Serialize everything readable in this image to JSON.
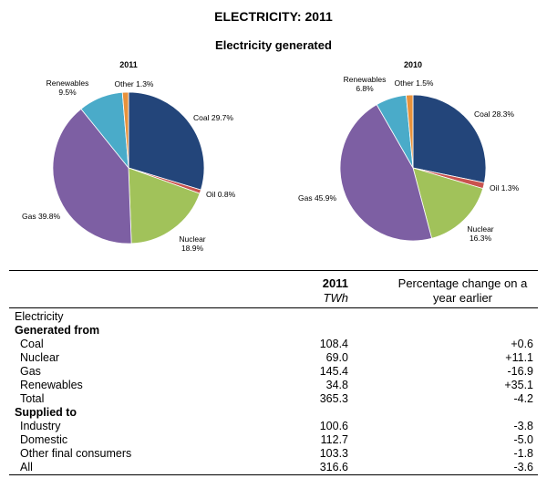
{
  "header": {
    "title": "ELECTRICITY: 2011",
    "subtitle": "Electricity generated"
  },
  "chart_data": [
    {
      "type": "pie",
      "title": "2011",
      "categories": [
        "Coal",
        "Oil",
        "Nuclear",
        "Gas",
        "Renewables",
        "Other"
      ],
      "values": [
        29.7,
        0.8,
        18.9,
        39.8,
        9.5,
        1.3
      ],
      "labels": [
        "Coal 29.7%",
        "Oil 0.8%",
        "Nuclear\n18.9%",
        "Gas 39.8%",
        "Renewables\n9.5%",
        "Other 1.3%"
      ],
      "colors": [
        "#23457a",
        "#c9534f",
        "#a1c25a",
        "#7d5fa3",
        "#4aabc9",
        "#e8923c"
      ]
    },
    {
      "type": "pie",
      "title": "2010",
      "categories": [
        "Coal",
        "Oil",
        "Nuclear",
        "Gas",
        "Renewables",
        "Other"
      ],
      "values": [
        28.3,
        1.3,
        16.3,
        45.9,
        6.8,
        1.5
      ],
      "labels": [
        "Coal 28.3%",
        "Oil 1.3%",
        "Nuclear\n16.3%",
        "Gas 45.9%",
        "Renewables\n6.8%",
        "Other 1.5%"
      ],
      "colors": [
        "#23457a",
        "#c9534f",
        "#a1c25a",
        "#7d5fa3",
        "#4aabc9",
        "#e8923c"
      ]
    },
    {
      "type": "table",
      "columns": [
        "",
        "2011",
        "Percentage change on a year earlier"
      ],
      "units": "TWh",
      "rows": [
        {
          "label": "Electricity",
          "value": "",
          "change": "",
          "style": "plain"
        },
        {
          "label": "Generated from",
          "value": "",
          "change": "",
          "style": "bold"
        },
        {
          "label": "Coal",
          "value": "108.4",
          "change": "+0.6",
          "style": "indent"
        },
        {
          "label": "Nuclear",
          "value": "69.0",
          "change": "+11.1",
          "style": "indent"
        },
        {
          "label": "Gas",
          "value": "145.4",
          "change": "-16.9",
          "style": "indent"
        },
        {
          "label": "Renewables",
          "value": "34.8",
          "change": "+35.1",
          "style": "indent"
        },
        {
          "label": "Total",
          "value": "365.3",
          "change": "-4.2",
          "style": "indent"
        },
        {
          "label": "Supplied to",
          "value": "",
          "change": "",
          "style": "bold"
        },
        {
          "label": "Industry",
          "value": "100.6",
          "change": "-3.8",
          "style": "indent"
        },
        {
          "label": "Domestic",
          "value": "112.7",
          "change": "-5.0",
          "style": "indent"
        },
        {
          "label": "Other final consumers",
          "value": "103.3",
          "change": "-1.8",
          "style": "indent"
        },
        {
          "label": "All",
          "value": "316.6",
          "change": "-3.6",
          "style": "indent"
        }
      ]
    }
  ]
}
